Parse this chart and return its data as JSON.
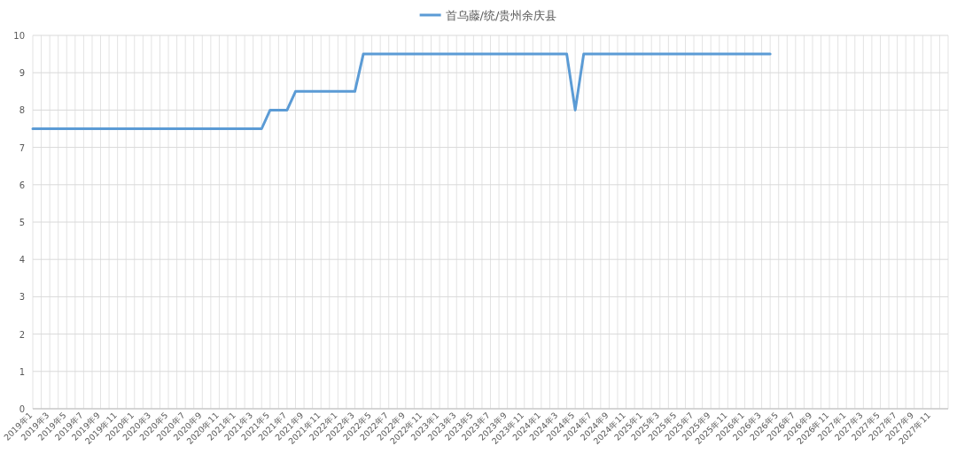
{
  "chart_data": {
    "type": "line",
    "categories": [
      "2019年1",
      null,
      "2019年3",
      null,
      "2019年5",
      null,
      "2019年7",
      null,
      "2019年9",
      null,
      "2019年11",
      null,
      "2020年1",
      null,
      "2020年3",
      null,
      "2020年5",
      null,
      "2020年7",
      null,
      "2020年9",
      null,
      "2020年11",
      null,
      "2021年1",
      null,
      "2021年3",
      null,
      "2021年5",
      null,
      "2021年7",
      null,
      "2021年9",
      null,
      "2021年11",
      null,
      "2022年1",
      null,
      "2022年3",
      null,
      "2022年5",
      null,
      "2022年7",
      null,
      "2022年9",
      null,
      "2022年11",
      null,
      "2023年1",
      null,
      "2023年3",
      null,
      "2023年5",
      null,
      "2023年7",
      null,
      "2023年9",
      null,
      "2023年11",
      null,
      "2024年1",
      null,
      "2024年3",
      null,
      "2024年5",
      null,
      "2024年7",
      null,
      "2024年9",
      null,
      "2024年11",
      null,
      "2025年1",
      null,
      "2025年3",
      null,
      "2025年5",
      null,
      "2025年7",
      null,
      "2025年9",
      null,
      "2025年11",
      null,
      "2026年1",
      null,
      "2026年3",
      null,
      "2026年5",
      null,
      "2026年7",
      null,
      "2026年9",
      null,
      "2026年11",
      null,
      "2027年1",
      null,
      "2027年3",
      null,
      "2027年5",
      null,
      "2027年7",
      null,
      "2027年9",
      null,
      "2027年11",
      null
    ],
    "series": [
      {
        "name": "首乌藤/统/贵州余庆县",
        "color": "#5b9bd5",
        "values": [
          7.5,
          7.5,
          7.5,
          7.5,
          7.5,
          7.5,
          7.5,
          7.5,
          7.5,
          7.5,
          7.5,
          7.5,
          7.5,
          7.5,
          7.5,
          7.5,
          7.5,
          7.5,
          7.5,
          7.5,
          7.5,
          7.5,
          7.5,
          7.5,
          7.5,
          7.5,
          7.5,
          7.5,
          8,
          8,
          8,
          8.5,
          8.5,
          8.5,
          8.5,
          8.5,
          8.5,
          8.5,
          8.5,
          9.5,
          9.5,
          9.5,
          9.5,
          9.5,
          9.5,
          9.5,
          9.5,
          9.5,
          9.5,
          9.5,
          9.5,
          9.5,
          9.5,
          9.5,
          9.5,
          9.5,
          9.5,
          9.5,
          9.5,
          9.5,
          9.5,
          9.5,
          9.5,
          9.5,
          8,
          9.5,
          9.5,
          9.5,
          9.5,
          9.5,
          9.5,
          9.5,
          9.5,
          9.5,
          9.5,
          9.5,
          9.5,
          9.5,
          9.5,
          9.5,
          9.5,
          9.5,
          9.5,
          9.5,
          9.5,
          9.5,
          9.5,
          9.5,
          null,
          null,
          null,
          null,
          null,
          null,
          null,
          null,
          null,
          null,
          null,
          null,
          null,
          null,
          null,
          null,
          null,
          null,
          null,
          null
        ]
      }
    ],
    "ylim": [
      0,
      10
    ],
    "yticks": [
      0,
      1,
      2,
      3,
      4,
      5,
      6,
      7,
      8,
      9,
      10
    ],
    "grid": true,
    "legend": "top"
  }
}
